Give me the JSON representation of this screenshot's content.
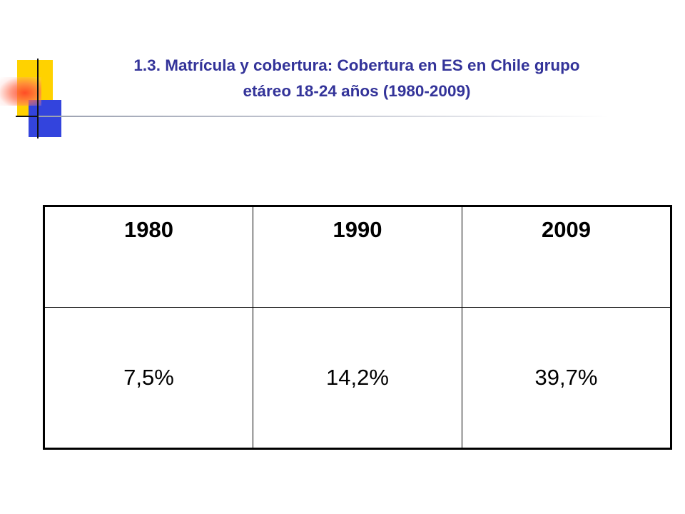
{
  "slide": {
    "title_line1": "1.3. Matrícula y cobertura: Cobertura en ES en Chile grupo",
    "title_line2": "etáreo 18-24 años (1980-2009)"
  },
  "table": {
    "headers": [
      "1980",
      "1990",
      "2009"
    ],
    "values": [
      "7,5%",
      "14,2%",
      "39,7%"
    ]
  },
  "colors": {
    "title": "#333399",
    "logo_yellow": "#ffd200",
    "logo_blue": "#3344dd",
    "logo_red": "#ff4628"
  }
}
